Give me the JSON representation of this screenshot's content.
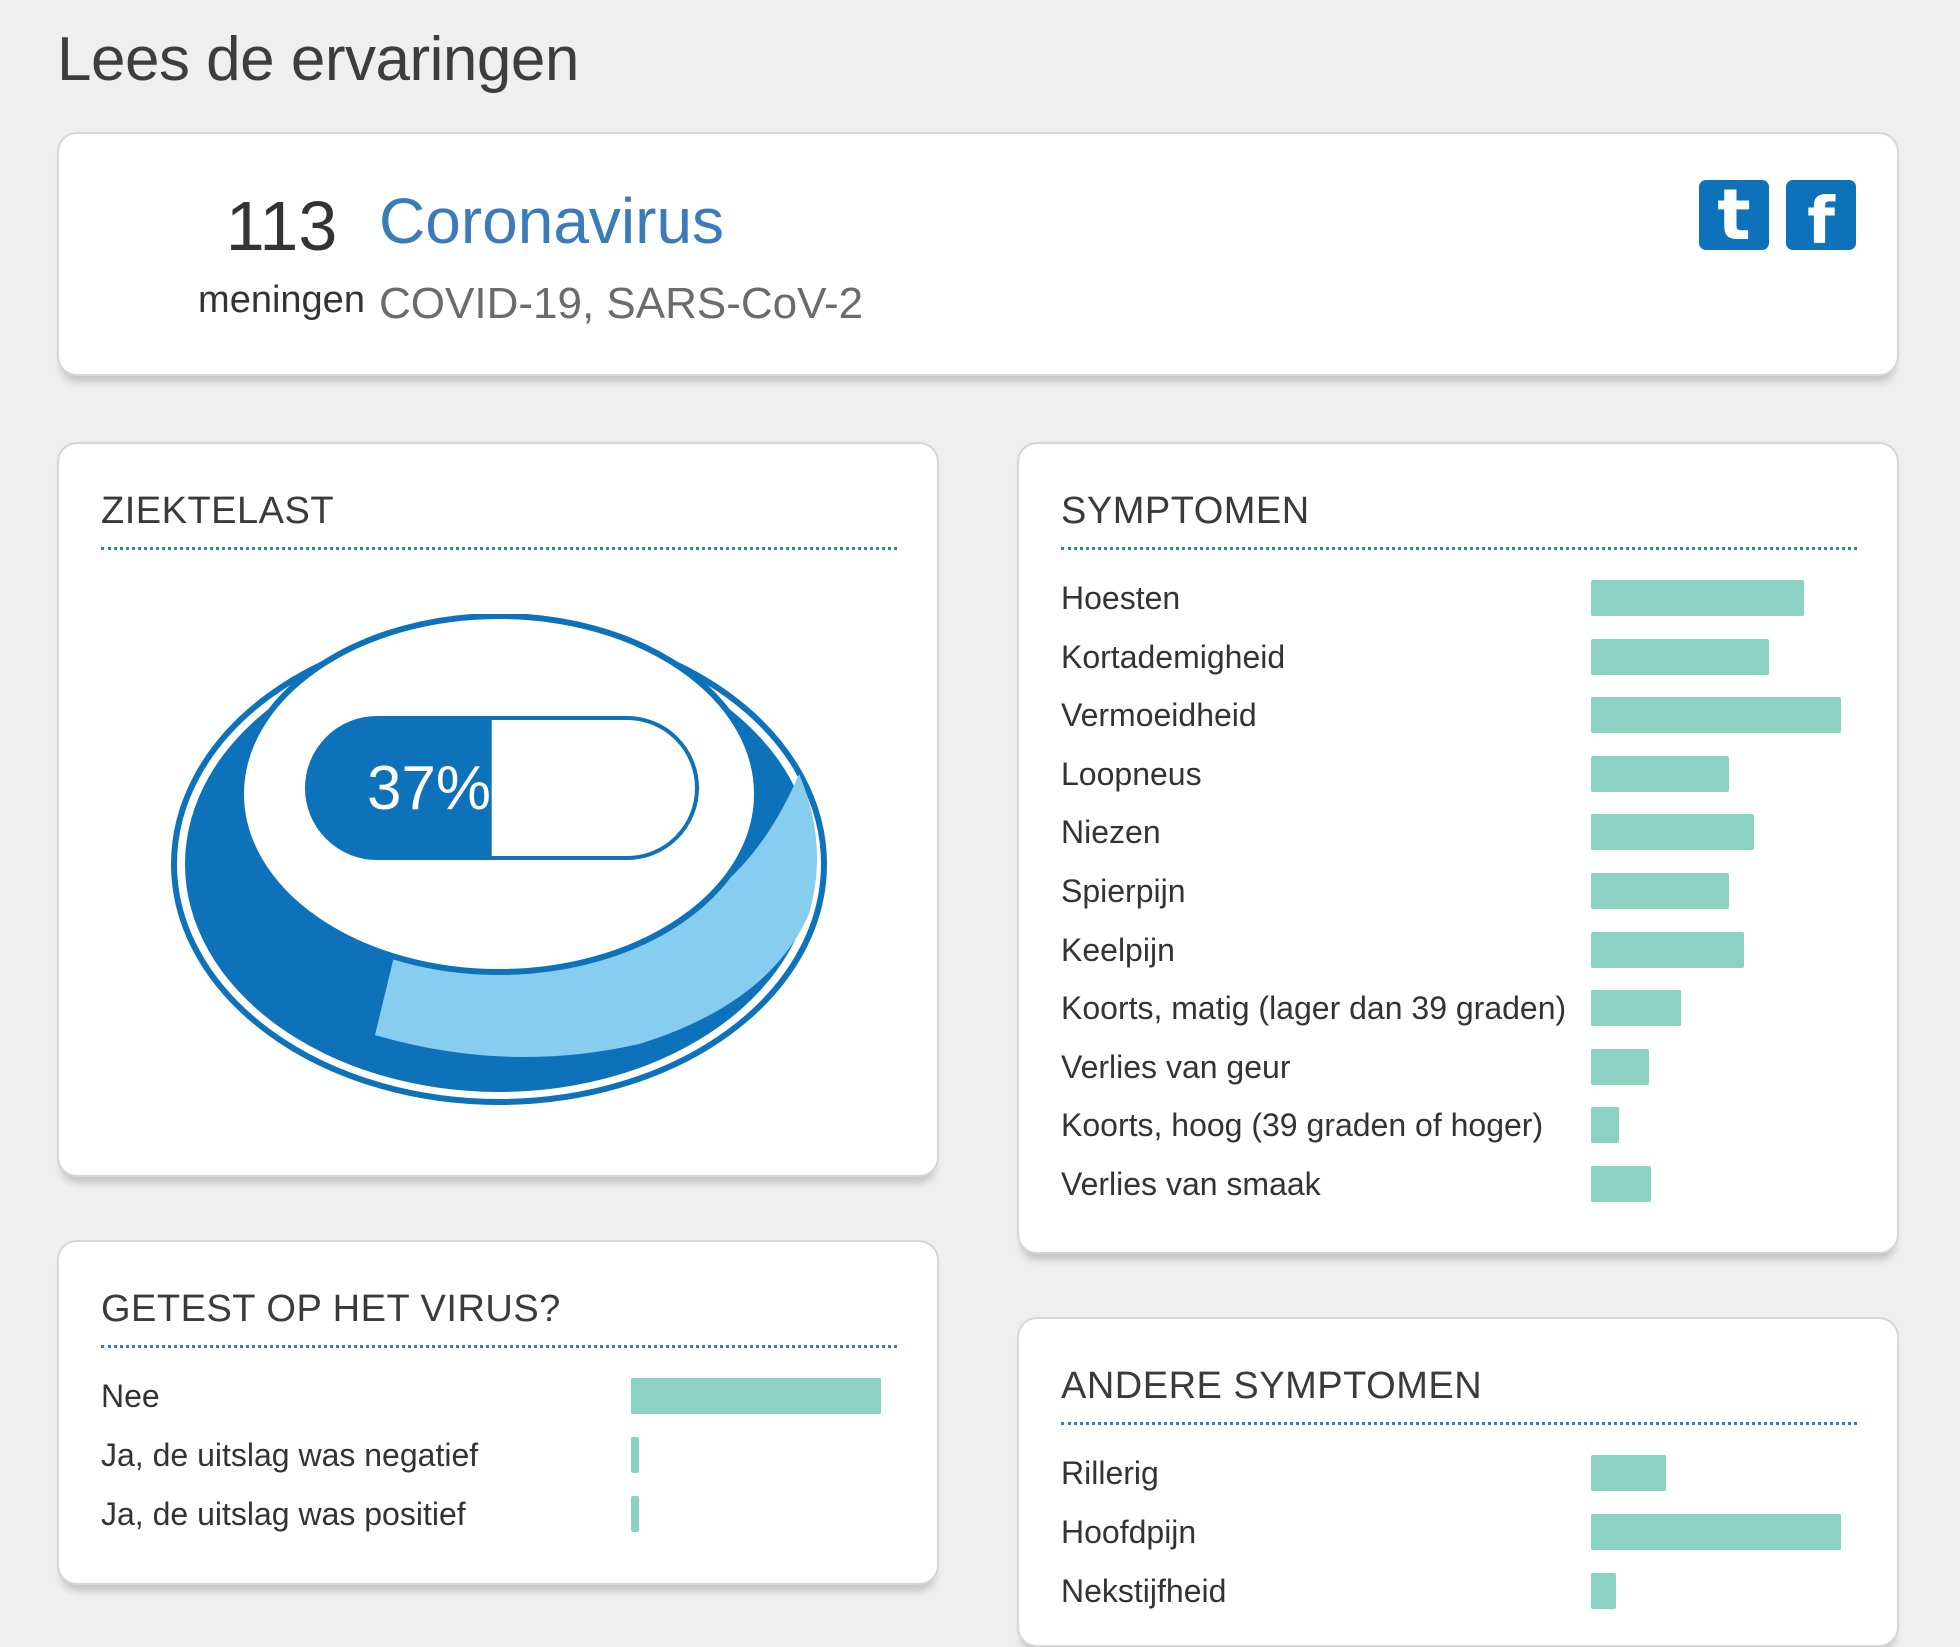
{
  "page": {
    "title": "Lees de ervaringen"
  },
  "header": {
    "count": "113",
    "count_label": "meningen",
    "topic": "Coronavirus",
    "subtitle": "COVID-19, SARS-CoV-2",
    "social": {
      "twitter_icon": "twitter-icon",
      "facebook_icon": "facebook-icon"
    }
  },
  "burden": {
    "title": "ZIEKTELAST",
    "percent_label": "37%",
    "percent_value": 37
  },
  "tested": {
    "title": "GETEST OP HET VIRUS?",
    "items": [
      {
        "label": "Nee",
        "value": 1.0
      },
      {
        "label": "Ja, de uitslag was negatief",
        "value": 0.03
      },
      {
        "label": "Ja, de uitslag was positief",
        "value": 0.03
      }
    ]
  },
  "symptoms": {
    "title": "SYMPTOMEN",
    "items": [
      {
        "label": "Hoesten",
        "value": 0.85
      },
      {
        "label": "Kortademigheid",
        "value": 0.71
      },
      {
        "label": "Vermoeidheid",
        "value": 1.0
      },
      {
        "label": "Loopneus",
        "value": 0.55
      },
      {
        "label": "Niezen",
        "value": 0.65
      },
      {
        "label": "Spierpijn",
        "value": 0.55
      },
      {
        "label": "Keelpijn",
        "value": 0.61
      },
      {
        "label": "Koorts, matig (lager dan 39 graden)",
        "value": 0.36
      },
      {
        "label": "Verlies van geur",
        "value": 0.23
      },
      {
        "label": "Koorts, hoog (39 graden of hoger)",
        "value": 0.11
      },
      {
        "label": "Verlies van smaak",
        "value": 0.24
      }
    ]
  },
  "other_symptoms": {
    "title": "ANDERE SYMPTOMEN",
    "items": [
      {
        "label": "Rillerig",
        "value": 0.3
      },
      {
        "label": "Hoofdpijn",
        "value": 1.0
      },
      {
        "label": "Nekstijfheid",
        "value": 0.1
      }
    ]
  },
  "colors": {
    "bar": "#8cd2c3",
    "accent_blue": "#0d72b9",
    "light_blue": "#87cdef",
    "title_blue": "#3b7bb7"
  }
}
